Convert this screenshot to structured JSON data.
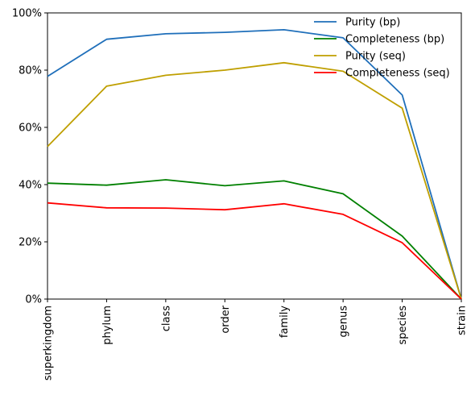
{
  "chart_data": {
    "type": "line",
    "title": "",
    "xlabel": "",
    "ylabel": "",
    "categories": [
      "superkingdom",
      "phylum",
      "class",
      "order",
      "family",
      "genus",
      "species",
      "strain"
    ],
    "ylim": [
      0,
      100
    ],
    "yticks": [
      0,
      20,
      40,
      60,
      80,
      100
    ],
    "ytick_labels": [
      "0%",
      "20%",
      "40%",
      "60%",
      "80%",
      "100%"
    ],
    "grid": false,
    "legend_position": "top-right",
    "series": [
      {
        "name": "Purity (bp)",
        "color": "#1f6fba",
        "values": [
          77.8,
          90.8,
          92.7,
          93.2,
          94.1,
          91.3,
          71.3,
          0
        ]
      },
      {
        "name": "Completeness (bp)",
        "color": "#008000",
        "values": [
          40.5,
          39.8,
          41.7,
          39.6,
          41.3,
          36.8,
          22.0,
          0
        ]
      },
      {
        "name": "Purity (seq)",
        "color": "#bf9f00",
        "values": [
          53.3,
          74.4,
          78.2,
          80.0,
          82.6,
          79.6,
          66.7,
          0
        ]
      },
      {
        "name": "Completeness (seq)",
        "color": "#ff0000",
        "values": [
          33.6,
          31.9,
          31.8,
          31.2,
          33.3,
          29.6,
          19.7,
          0
        ]
      }
    ]
  }
}
